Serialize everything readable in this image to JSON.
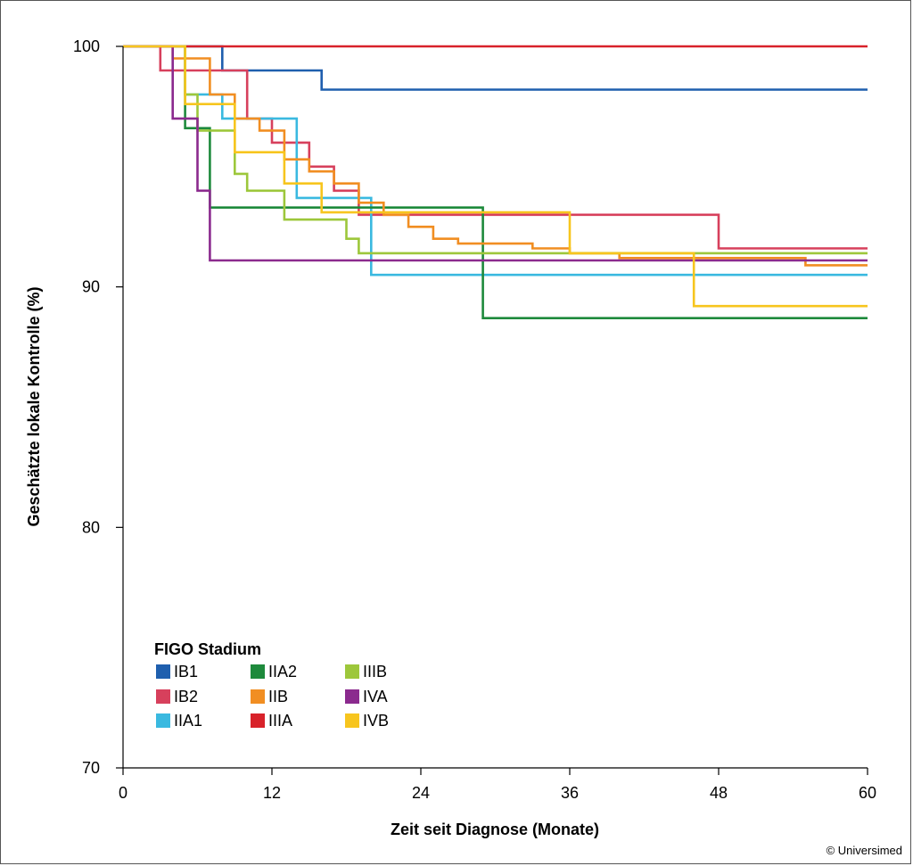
{
  "chart_data": {
    "type": "line",
    "step": true,
    "xlabel": "Zeit seit Diagnose (Monate)",
    "ylabel": "Geschätzte lokale Kontrolle (%)",
    "xlim": [
      0,
      60
    ],
    "ylim": [
      70,
      100
    ],
    "xticks": [
      0,
      12,
      24,
      36,
      48,
      60
    ],
    "yticks": [
      70,
      80,
      90,
      100
    ],
    "grid": false,
    "legend": {
      "title": "FIGO Stadium",
      "placement": "bottom-left",
      "columns": 3
    },
    "series": [
      {
        "name": "IB1",
        "color": "#1f5fae",
        "x": [
          0,
          8,
          8,
          16,
          16,
          60
        ],
        "y": [
          100,
          100,
          99,
          99,
          98.2,
          98.2
        ]
      },
      {
        "name": "IB2",
        "color": "#d7405c",
        "x": [
          0,
          3,
          3,
          10,
          10,
          12,
          12,
          15,
          15,
          17,
          17,
          19,
          19,
          48,
          48,
          60
        ],
        "y": [
          100,
          100,
          99,
          99,
          97,
          97,
          96,
          96,
          95,
          95,
          94,
          94,
          93,
          93,
          91.6,
          91.6
        ]
      },
      {
        "name": "IIA1",
        "color": "#3ab9e0",
        "x": [
          0,
          5,
          5,
          8,
          8,
          14,
          14,
          20,
          20,
          60
        ],
        "y": [
          100,
          100,
          98,
          98,
          97,
          97,
          93.7,
          93.7,
          90.5,
          90.5
        ]
      },
      {
        "name": "IIA2",
        "color": "#1e8a3c",
        "x": [
          0,
          5,
          5,
          7,
          7,
          29,
          29,
          60
        ],
        "y": [
          100,
          100,
          96.6,
          96.6,
          93.3,
          93.3,
          88.7,
          88.7
        ]
      },
      {
        "name": "IIB",
        "color": "#f18e22",
        "x": [
          0,
          4,
          4,
          7,
          7,
          9,
          9,
          11,
          11,
          13,
          13,
          15,
          15,
          17,
          17,
          19,
          19,
          21,
          21,
          23,
          23,
          25,
          25,
          27,
          27,
          33,
          33,
          36,
          36,
          40,
          40,
          55,
          55,
          60
        ],
        "y": [
          100,
          100,
          99.5,
          99.5,
          98,
          98,
          97,
          97,
          96.5,
          96.5,
          95.3,
          95.3,
          94.8,
          94.8,
          94.3,
          94.3,
          93.5,
          93.5,
          93,
          93,
          92.5,
          92.5,
          92,
          92,
          91.8,
          91.8,
          91.6,
          91.6,
          91.4,
          91.4,
          91.2,
          91.2,
          90.9,
          90.9
        ]
      },
      {
        "name": "IIIA",
        "color": "#d8222a",
        "x": [
          0,
          60
        ],
        "y": [
          100,
          100
        ]
      },
      {
        "name": "IIIB",
        "color": "#9dc73b",
        "x": [
          0,
          5,
          5,
          6,
          6,
          9,
          9,
          10,
          10,
          13,
          13,
          18,
          18,
          19,
          19,
          60
        ],
        "y": [
          100,
          100,
          98,
          98,
          96.5,
          96.5,
          94.7,
          94.7,
          94,
          94,
          92.8,
          92.8,
          92,
          92,
          91.4,
          91.4
        ]
      },
      {
        "name": "IVA",
        "color": "#8b2a8e",
        "x": [
          0,
          4,
          4,
          6,
          6,
          7,
          7,
          60
        ],
        "y": [
          100,
          100,
          97,
          97,
          94,
          94,
          91.1,
          91.1
        ]
      },
      {
        "name": "IVB",
        "color": "#f7c51e",
        "x": [
          0,
          5,
          5,
          9,
          9,
          13,
          13,
          16,
          16,
          36,
          36,
          46,
          46,
          60
        ],
        "y": [
          100,
          100,
          97.6,
          97.6,
          95.6,
          95.6,
          94.3,
          94.3,
          93.1,
          93.1,
          91.4,
          91.4,
          89.2,
          89.2
        ]
      }
    ]
  },
  "credit": "© Universimed"
}
